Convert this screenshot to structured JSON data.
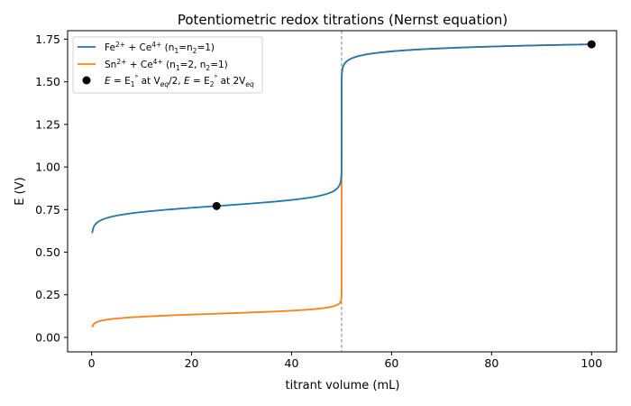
{
  "chart_data": {
    "type": "line",
    "title": "Potentiometric redox titrations (Nernst equation)",
    "xlabel": "titrant volume (mL)",
    "ylabel": "E (V)",
    "xlim": [
      -4.8,
      105
    ],
    "ylim": [
      -0.085,
      1.8
    ],
    "x_ticks": [
      0,
      20,
      40,
      60,
      80,
      100
    ],
    "y_ticks": [
      0.0,
      0.25,
      0.5,
      0.75,
      1.0,
      1.25,
      1.5,
      1.75
    ],
    "x_tick_labels": [
      "0",
      "20",
      "40",
      "60",
      "80",
      "100"
    ],
    "y_tick_labels": [
      "0.00",
      "0.25",
      "0.50",
      "0.75",
      "1.00",
      "1.25",
      "1.50",
      "1.75"
    ],
    "grid": false,
    "legend_position": "top-left",
    "equivalence_line": {
      "x": 50,
      "style": "dashed",
      "color": "#808080"
    },
    "model": {
      "E_fe": 0.771,
      "E_sn": 0.139,
      "E_ce": 1.72,
      "V_eq": 50,
      "V_start": 0.1,
      "V_end": 100,
      "RT_F": 0.025693
    },
    "series": [
      {
        "name": "Fe2+ + Ce4+ (n1=n2=1)",
        "color": "#1f77b4",
        "formula": "fe"
      },
      {
        "name": "Sn2+ + Ce4+ (n1=2, n2=1)",
        "color": "#ff7f0e",
        "formula": "sn"
      }
    ],
    "markers": {
      "color": "#000000",
      "points": [
        {
          "x": 25,
          "y": 0.771
        },
        {
          "x": 100,
          "y": 1.72
        }
      ]
    }
  },
  "legend": {
    "fe": {
      "species1": "Fe",
      "charge1": "2+",
      "plus": " + ",
      "species2": "Ce",
      "charge2": "4+",
      "paren_open": " (n",
      "sub1": "1",
      "eq": "=n",
      "sub2": "2",
      "tail": "=1)"
    },
    "sn": {
      "species1": "Sn",
      "charge1": "2+",
      "plus": " + ",
      "species2": "Ce",
      "charge2": "4+",
      "paren_open": " (n",
      "sub1": "1",
      "eq": "=2, n",
      "sub2": "2",
      "tail": "=1)"
    },
    "markers": {
      "E1": "E",
      "eq1": " = E",
      "s1": "1",
      "sup1": "°",
      "at1": " at V",
      "seq1": "eq",
      "half": "/2, ",
      "E2": "E",
      "eq2": " = E",
      "s2": "2",
      "sup2": "°",
      "at2": " at 2V",
      "seq2": "eq"
    }
  }
}
